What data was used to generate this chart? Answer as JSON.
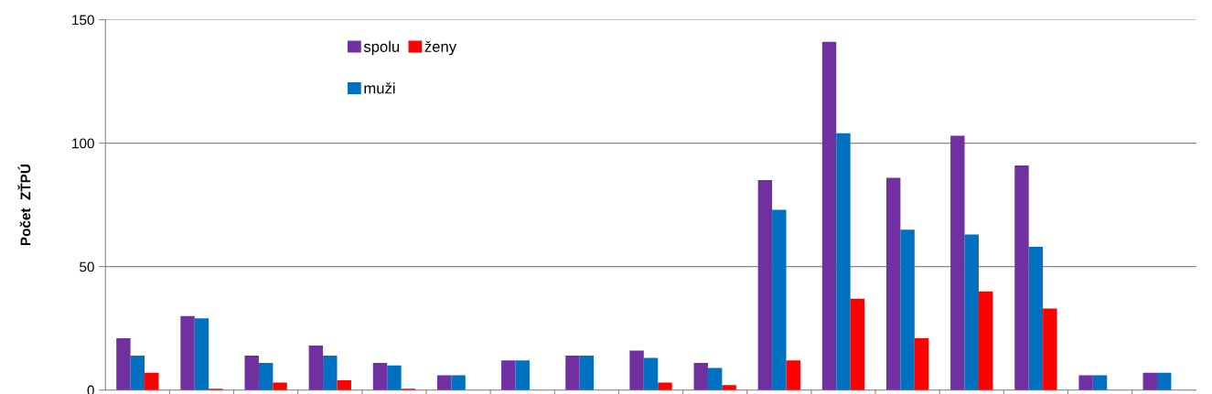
{
  "chart_data": {
    "type": "bar",
    "ylabel": "Počet  ZŤPÚ",
    "categories": [
      null,
      null,
      null,
      null,
      null,
      null,
      null,
      null,
      null,
      null,
      null,
      null,
      null,
      null,
      null,
      null,
      null
    ],
    "series": [
      {
        "name": "spolu",
        "color": "#7030a0",
        "values": [
          21,
          30,
          14,
          18,
          11,
          6,
          12,
          14,
          16,
          11,
          85,
          141,
          86,
          103,
          91,
          6,
          7
        ]
      },
      {
        "name": "muži",
        "color": "#0070c0",
        "values": [
          14,
          29,
          11,
          14,
          10,
          6,
          12,
          14,
          13,
          9,
          73,
          104,
          65,
          63,
          58,
          6,
          7
        ]
      },
      {
        "name": "ženy",
        "color": "#ff0000",
        "values": [
          7,
          0.5,
          3,
          4,
          0.5,
          0,
          0,
          0,
          3,
          2,
          12,
          37,
          21,
          40,
          33,
          0,
          0
        ]
      }
    ],
    "ylim": [
      0,
      150
    ],
    "yticks": [
      0,
      50,
      100,
      150
    ],
    "grid": "y",
    "legend": "top",
    "tick_labels": "y"
  }
}
